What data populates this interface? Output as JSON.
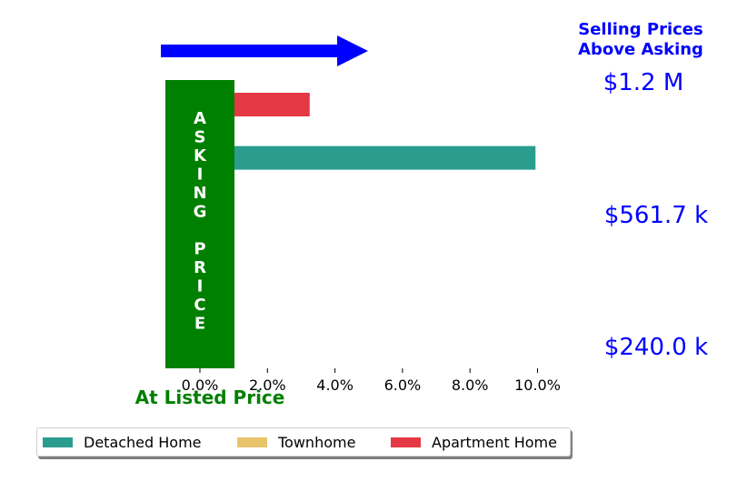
{
  "chart_data": {
    "type": "bar",
    "orientation": "horizontal",
    "x_tick_labels": [
      "0.0%",
      "2.0%",
      "4.0%",
      "6.0%",
      "8.0%",
      "10.0%"
    ],
    "x_ticks": [
      0,
      2,
      4,
      6,
      8,
      10
    ],
    "xlim": [
      -1.1,
      11.2
    ],
    "series": [
      {
        "name": "Detached Home",
        "color": "#2a9d8f"
      },
      {
        "name": "Townhome",
        "color": "#e9c46a"
      },
      {
        "name": "Apartment Home",
        "color": "#e63946"
      }
    ],
    "bars": [
      {
        "value": 3.85,
        "series": "Apartment Home"
      },
      {
        "value": 0.5,
        "series": "Detached Home"
      },
      {
        "value": 10.1,
        "series": "Detached Home"
      },
      {
        "value": 0.4,
        "series": "Townhome"
      },
      {
        "value": 0.15,
        "series": "Townhome"
      },
      {
        "value": 0.15,
        "series": "Detached Home"
      },
      {
        "value": 0.72,
        "series": "Townhome"
      },
      {
        "value": 0.15,
        "series": "Townhome"
      },
      {
        "value": 0.15,
        "series": "Apartment Home"
      },
      {
        "value": 0.15,
        "series": "Apartment Home"
      }
    ],
    "asking_price_band": {
      "from": -1.0,
      "to": 0.0,
      "color": "#008000",
      "letters": [
        "A",
        "S",
        "K",
        "I",
        "N",
        "G",
        "",
        "P",
        "R",
        "I",
        "C",
        "E"
      ]
    },
    "price_labels": [
      "$1.2 M",
      "$561.7 k",
      "$240.0 k"
    ],
    "title_right": [
      "Selling Prices",
      "Above Asking"
    ],
    "xlabel": "At Listed Price",
    "arrow_color": "#0000ff",
    "legend_placement": "bottom"
  }
}
